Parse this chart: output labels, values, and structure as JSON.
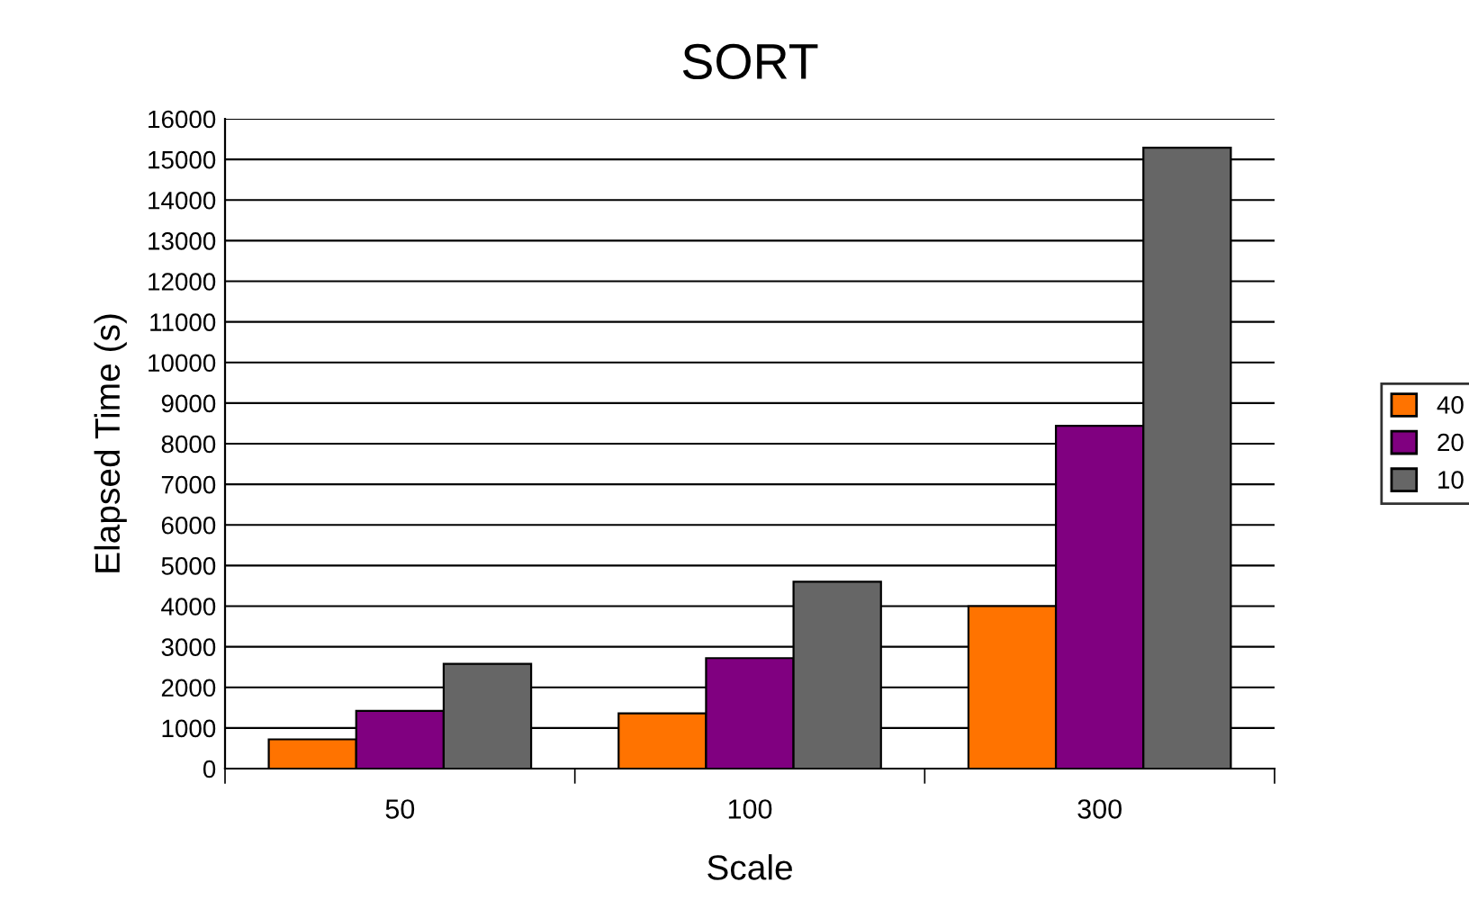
{
  "chart_data": {
    "type": "bar",
    "title": "SORT",
    "xlabel": "Scale",
    "ylabel": "Elapsed Time (s)",
    "categories": [
      "50",
      "100",
      "300"
    ],
    "series": [
      {
        "name": "40",
        "color": "#ff7300",
        "values": [
          720,
          1360,
          4000
        ]
      },
      {
        "name": "20",
        "color": "#800080",
        "values": [
          1420,
          2720,
          8440
        ]
      },
      {
        "name": "10",
        "color": "#666666",
        "values": [
          2580,
          4600,
          15290
        ]
      }
    ],
    "ylim": [
      0,
      16000
    ],
    "yticks": [
      0,
      1000,
      2000,
      3000,
      4000,
      5000,
      6000,
      7000,
      8000,
      9000,
      10000,
      11000,
      12000,
      13000,
      14000,
      15000,
      16000
    ],
    "grid": "y",
    "legend": "right"
  }
}
